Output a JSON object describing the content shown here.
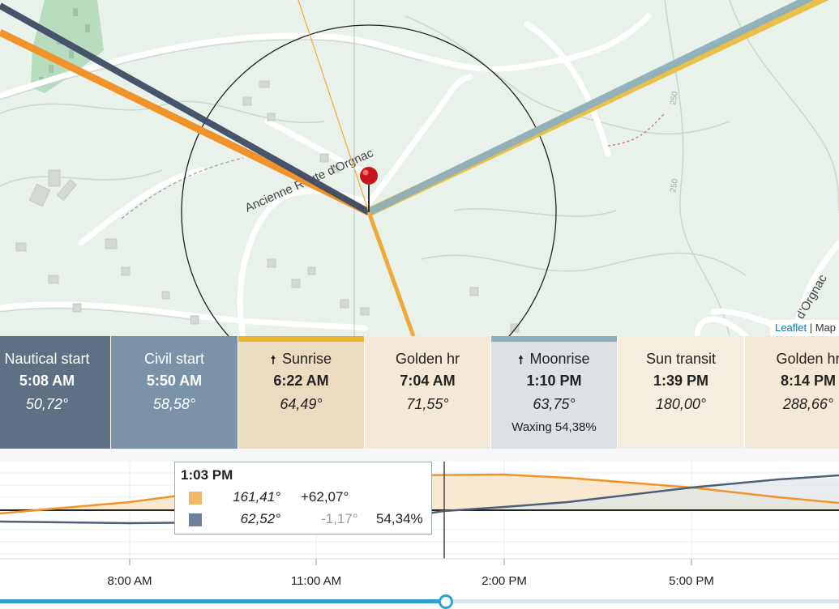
{
  "map": {
    "road_label": "Ancienne Route d'Orgnac",
    "road_label_right": "d'Orgnac",
    "contour_labels": [
      "250",
      "250"
    ],
    "attribution": {
      "leaflet": "Leaflet",
      "separator": " | ",
      "map": "Map"
    }
  },
  "events": [
    {
      "label": "Nautical start",
      "time": "5:08 AM",
      "azimuth": "50,72°",
      "bg": "#5e7184",
      "fg": "#ffffff"
    },
    {
      "label": "Civil start",
      "time": "5:50 AM",
      "azimuth": "58,58°",
      "bg": "#7b93a8",
      "fg": "#ffffff"
    },
    {
      "label": "Sunrise",
      "time": "6:22 AM",
      "azimuth": "64,49°",
      "bg": "#ecdcbf",
      "fg": "#222222",
      "arrow": "🠕",
      "bar": "#e8b52e"
    },
    {
      "label": "Golden hr",
      "time": "7:04 AM",
      "azimuth": "71,55°",
      "bg": "#f4e9d6",
      "fg": "#222222"
    },
    {
      "label": "Moonrise",
      "time": "1:10 PM",
      "azimuth": "63,75°",
      "extra": "Waxing 54,38%",
      "bg": "#dde1e4",
      "fg": "#222222",
      "arrow": "🠕",
      "bar": "#8fb0bd"
    },
    {
      "label": "Sun transit",
      "time": "1:39 PM",
      "azimuth": "180,00°",
      "bg": "#f5ede0",
      "fg": "#222222"
    },
    {
      "label": "Golden hr",
      "time": "8:14 PM",
      "azimuth": "288,66°",
      "bg": "#f4e9d6",
      "fg": "#222222"
    }
  ],
  "tooltip": {
    "time": "1:03 PM",
    "sun": {
      "azimuth": "161,41°",
      "altitude": "+62,07°",
      "color": "#f2b86a"
    },
    "moon": {
      "azimuth": "62,52°",
      "altitude": "-1,17°",
      "illumination": "54,34%",
      "color": "#6f8199"
    }
  },
  "timeline": {
    "ticks": [
      "8:00 AM",
      "11:00 AM",
      "2:00 PM",
      "5:00 PM"
    ],
    "slider_fraction": 0.53
  },
  "colors": {
    "sun": "#f0932b",
    "moon": "#3f4d66",
    "moonrise_line": "#8fb0bd",
    "sunrise_line": "#e8c04a",
    "slider": "#2e9fd0"
  }
}
